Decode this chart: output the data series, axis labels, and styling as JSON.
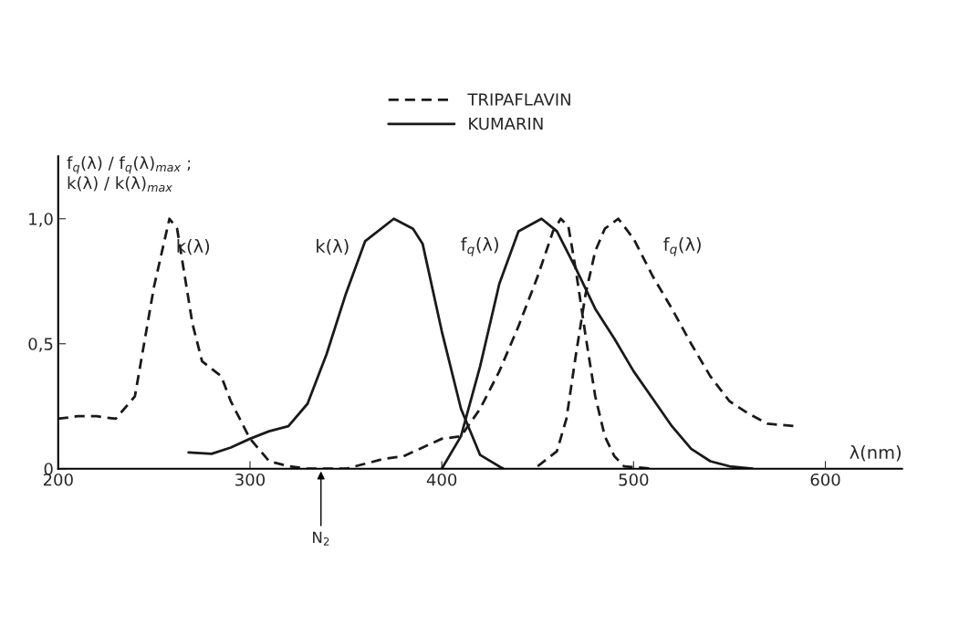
{
  "chart_data": {
    "type": "line",
    "xlabel": "λ(nm)",
    "ylabel": "f$_{q}$(λ) / f$_{q}$(λ)$_{max}$ ;\nk(λ) / k(λ)$_{max}$",
    "xlim": [
      200,
      640
    ],
    "xticks": [
      200,
      300,
      400,
      500,
      600
    ],
    "ylim": [
      0,
      1.25
    ],
    "yticks": [
      0,
      {
        "value": 0.5,
        "label": "0,5"
      },
      {
        "value": 1.0,
        "label": "1,0"
      }
    ],
    "grid": false,
    "legend": "top",
    "marker": "none",
    "series": [
      {
        "name": "TRIPAFLAVIN",
        "color": "#1a1a1a",
        "line_style": "dashed",
        "x": [
          200,
          210,
          220,
          230,
          240,
          250,
          258,
          262,
          270,
          275,
          285,
          290,
          300,
          310,
          320,
          330,
          350,
          360,
          370,
          380,
          390,
          400,
          410,
          420,
          430,
          440,
          450,
          458,
          462,
          466,
          470,
          475,
          480,
          485,
          490,
          495,
          510
        ],
        "values": [
          0.2,
          0.21,
          0.21,
          0.2,
          0.29,
          0.73,
          1.0,
          0.96,
          0.58,
          0.43,
          0.37,
          0.27,
          0.12,
          0.03,
          0.01,
          0,
          0,
          0.02,
          0.04,
          0.05,
          0.085,
          0.12,
          0.13,
          0.24,
          0.39,
          0.57,
          0.77,
          0.95,
          1.0,
          0.97,
          0.79,
          0.53,
          0.29,
          0.13,
          0.05,
          0.01,
          0
        ]
      },
      {
        "color": "#1a1a1a",
        "line_style": "dashed",
        "x": [
          450,
          460,
          465,
          470,
          475,
          480,
          485,
          492,
          500,
          510,
          520,
          530,
          540,
          550,
          560,
          570,
          585
        ],
        "values": [
          0.01,
          0.07,
          0.2,
          0.46,
          0.7,
          0.87,
          0.96,
          1.0,
          0.92,
          0.77,
          0.64,
          0.5,
          0.37,
          0.27,
          0.22,
          0.18,
          0.17
        ]
      },
      {
        "name": "KUMARIN",
        "color": "#1a1a1a",
        "line_style": "solid",
        "x": [
          268,
          280,
          290,
          300,
          310,
          320,
          330,
          340,
          350,
          360,
          375,
          385,
          390,
          400,
          410,
          420,
          432
        ],
        "values": [
          0.065,
          0.06,
          0.085,
          0.12,
          0.15,
          0.17,
          0.26,
          0.46,
          0.7,
          0.91,
          1.0,
          0.96,
          0.9,
          0.55,
          0.24,
          0.055,
          0
        ]
      },
      {
        "color": "#1a1a1a",
        "line_style": "solid",
        "x": [
          400,
          410,
          420,
          430,
          440,
          452,
          460,
          470,
          480,
          490,
          500,
          510,
          520,
          530,
          540,
          550,
          562
        ],
        "values": [
          0,
          0.13,
          0.41,
          0.74,
          0.95,
          1.0,
          0.95,
          0.8,
          0.64,
          0.52,
          0.39,
          0.28,
          0.17,
          0.08,
          0.03,
          0.01,
          0
        ]
      }
    ],
    "annotations": [
      "k(λ)",
      "k(λ)",
      "f$_{q}$(λ)",
      "f$_{q}$(λ)",
      {
        "text": "N$_{2}$",
        "x": 337,
        "y": 0
      }
    ]
  }
}
